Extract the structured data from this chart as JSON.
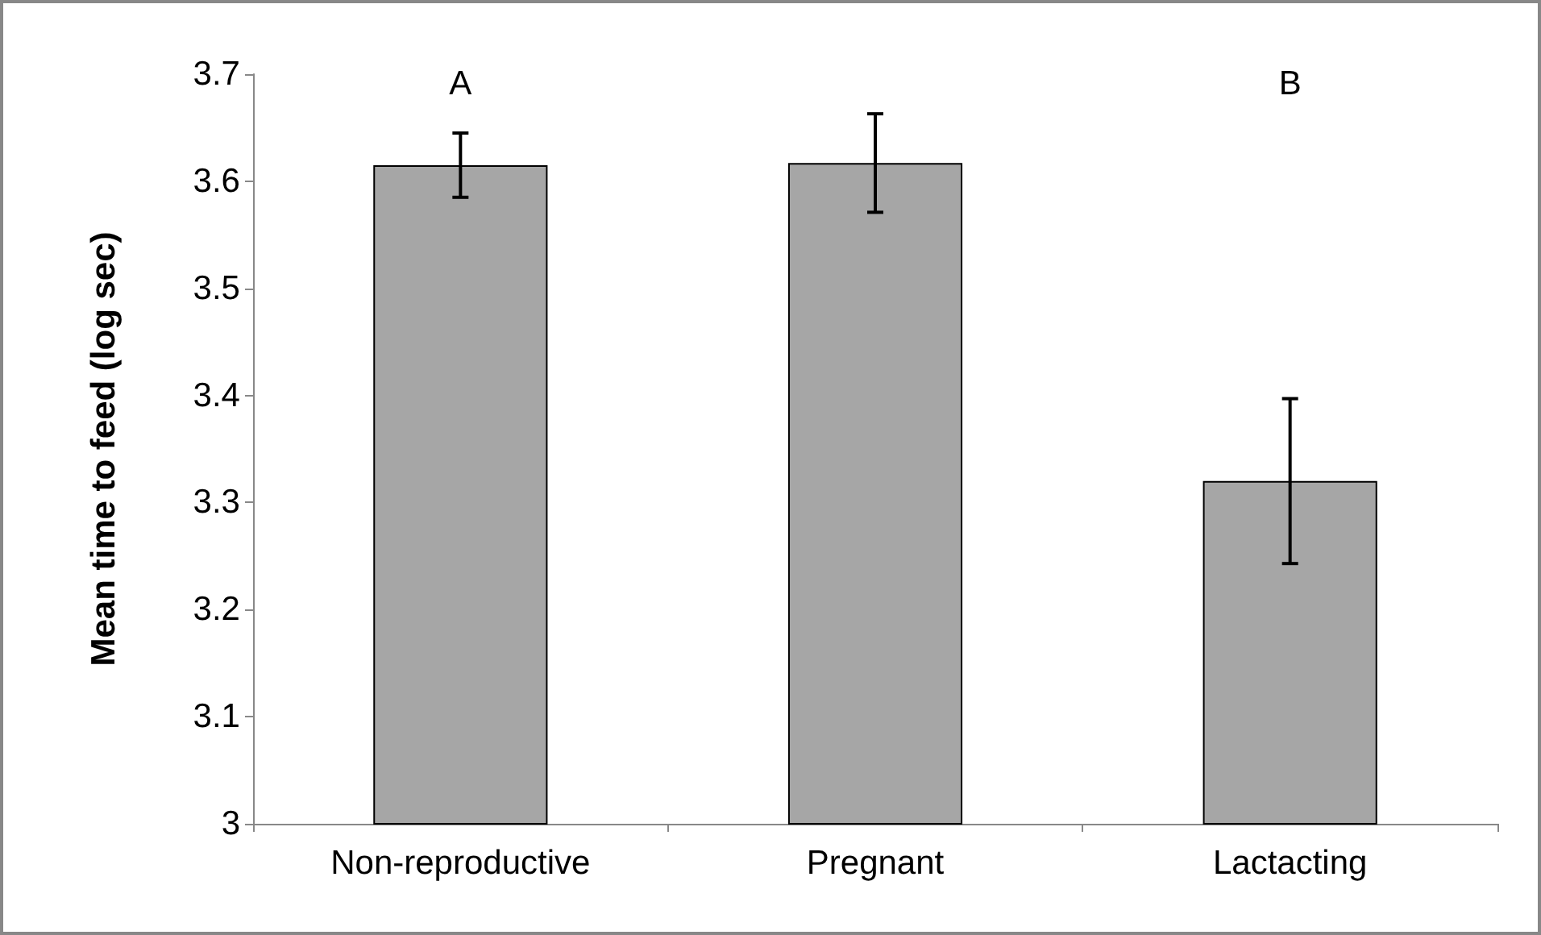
{
  "chart_data": {
    "type": "bar",
    "ylabel": "Mean time to feed (log sec)",
    "categories": [
      "Non-reproductive",
      "Pregnant",
      "Lactacting"
    ],
    "values": [
      3.615,
      3.617,
      3.32
    ],
    "errors": [
      0.03,
      0.046,
      0.077
    ],
    "color": "#a6a6a6",
    "ylim": [
      3,
      3.7
    ],
    "yticks": [
      3,
      3.1,
      3.2,
      3.3,
      3.4,
      3.5,
      3.6,
      3.7
    ],
    "annotations": [
      "A",
      "B"
    ],
    "grid": false
  }
}
